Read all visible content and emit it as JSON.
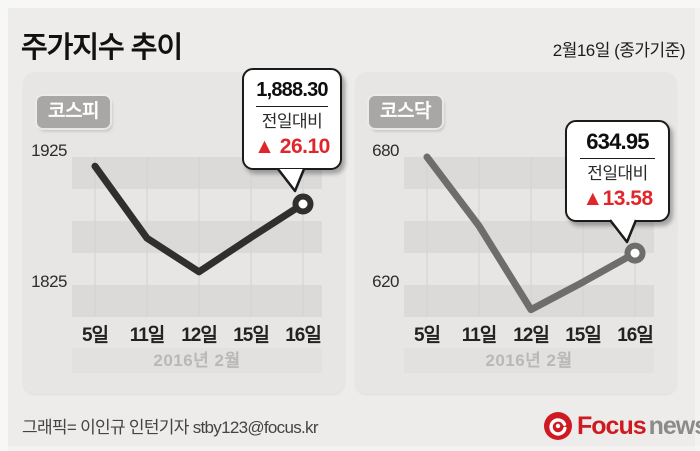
{
  "header": {
    "title": "주가지수 추이",
    "date_note": "2월16일 (종가기준)"
  },
  "chart_data": [
    {
      "type": "line",
      "title": "코스피",
      "categories": [
        "5일",
        "11일",
        "12일",
        "15일",
        "16일"
      ],
      "values": [
        1917.79,
        1861.54,
        1835.28,
        1862.2,
        1888.3
      ],
      "y_ticks": [
        {
          "label": "1925",
          "value": 1925
        },
        {
          "label": "1825",
          "value": 1825
        }
      ],
      "ylim": [
        1800,
        1925
      ],
      "month_label": "2016년 2월",
      "line_color": "#312f2d",
      "grid": "horizontal-bands",
      "legend": "none",
      "callout": {
        "value": "1,888.30",
        "label": "전일대비",
        "change": "▲ 26.10"
      }
    },
    {
      "type": "line",
      "title": "코스닥",
      "categories": [
        "5일",
        "11일",
        "12일",
        "15일",
        "16일"
      ],
      "values": [
        680.0,
        647.69,
        608.45,
        621.37,
        634.95
      ],
      "y_ticks": [
        {
          "label": "680",
          "value": 680
        },
        {
          "label": "620",
          "value": 620
        }
      ],
      "ylim": [
        605,
        680
      ],
      "month_label": "2016년 2월",
      "line_color": "#6e6d6b",
      "grid": "horizontal-bands",
      "legend": "none",
      "callout": {
        "value": "634.95",
        "label": "전일대비",
        "change": "▲13.58"
      }
    }
  ],
  "footer": {
    "credit": "그래픽= 이인규 인턴기자 stby123@focus.kr",
    "logo_focus": "Focus",
    "logo_news": "news"
  },
  "colors": {
    "up_red": "#e0262a",
    "kospi_line": "#312f2d",
    "kosdaq_line": "#6e6d6b",
    "focus_red": "#cf1a22",
    "news_gray": "#8c8b89",
    "panel_bg": "#e7e6e4",
    "stripe": "#dbdad8"
  }
}
